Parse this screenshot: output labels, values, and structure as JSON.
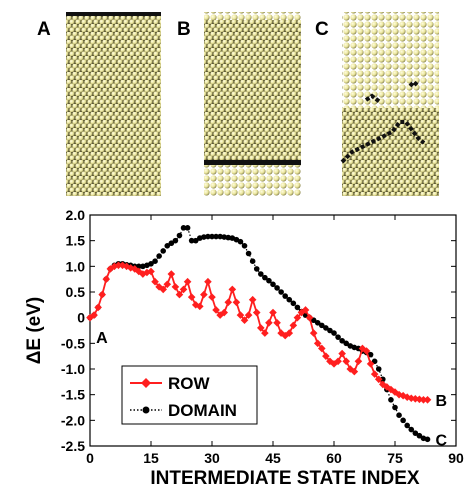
{
  "panels": [
    {
      "label": "A",
      "description": "full atomic layer"
    },
    {
      "label": "B",
      "description": "row of atoms displaced"
    },
    {
      "label": "C",
      "description": "domain displaced"
    }
  ],
  "colors": {
    "atom_fill": "#f2efa5",
    "atom_shade": "#6e6a3c",
    "atom_dark": "#0a0a0a",
    "row_series": "#ff1f1f",
    "domain_series": "#000000"
  },
  "chart_data": {
    "type": "line",
    "xlabel": "INTERMEDIATE STATE INDEX",
    "ylabel": "ΔE (eV)",
    "xlim": [
      0,
      90
    ],
    "ylim": [
      -2.5,
      2.0
    ],
    "xticks": [
      "0",
      "15",
      "30",
      "45",
      "60",
      "75",
      "90"
    ],
    "yticks": [
      "2.0",
      "1.5",
      "1.0",
      "0.5",
      "0",
      "-0.5",
      "-1.0",
      "-1.5",
      "-2.0",
      "-2.5"
    ],
    "grid": false,
    "legend_position": "bottom-left",
    "series": [
      {
        "name": "ROW",
        "marker": "diamond",
        "line_style": "solid",
        "x": [
          0,
          1,
          2,
          3,
          4,
          5,
          6,
          7,
          8,
          9,
          10,
          11,
          12,
          13,
          14,
          15,
          16,
          17,
          18,
          19,
          20,
          21,
          22,
          23,
          24,
          25,
          26,
          27,
          28,
          29,
          30,
          31,
          32,
          33,
          34,
          35,
          36,
          37,
          38,
          39,
          40,
          41,
          42,
          43,
          44,
          45,
          46,
          47,
          48,
          49,
          50,
          51,
          52,
          53,
          54,
          55,
          56,
          57,
          58,
          59,
          60,
          61,
          62,
          63,
          64,
          65,
          66,
          67,
          68,
          69,
          70,
          71,
          72,
          73,
          74,
          75,
          76,
          77,
          78,
          79,
          80,
          81,
          82,
          83
        ],
        "y": [
          0.0,
          0.05,
          0.2,
          0.45,
          0.75,
          0.95,
          1.0,
          1.02,
          1.02,
          1.0,
          0.97,
          0.95,
          0.9,
          0.85,
          0.88,
          0.9,
          0.7,
          0.6,
          0.55,
          0.65,
          0.85,
          0.6,
          0.45,
          0.55,
          0.7,
          0.4,
          0.25,
          0.22,
          0.45,
          0.7,
          0.4,
          0.15,
          0.05,
          0.1,
          0.3,
          0.55,
          0.3,
          0.05,
          -0.05,
          0.05,
          0.35,
          0.1,
          -0.2,
          -0.3,
          -0.1,
          0.1,
          -0.1,
          -0.3,
          -0.35,
          -0.3,
          -0.15,
          0.0,
          0.1,
          0.15,
          0.0,
          -0.3,
          -0.5,
          -0.6,
          -0.75,
          -0.85,
          -0.9,
          -0.85,
          -0.7,
          -0.85,
          -1.0,
          -1.05,
          -0.85,
          -0.6,
          -0.65,
          -0.9,
          -1.1,
          -1.2,
          -1.3,
          -1.35,
          -1.4,
          -1.45,
          -1.5,
          -1.52,
          -1.55,
          -1.57,
          -1.58,
          -1.59,
          -1.6,
          -1.6
        ]
      },
      {
        "name": "DOMAIN",
        "marker": "circle",
        "line_style": "dotted",
        "x": [
          0,
          1,
          2,
          3,
          4,
          5,
          6,
          7,
          8,
          9,
          10,
          11,
          12,
          13,
          14,
          15,
          16,
          17,
          18,
          19,
          20,
          21,
          22,
          23,
          24,
          25,
          26,
          27,
          28,
          29,
          30,
          31,
          32,
          33,
          34,
          35,
          36,
          37,
          38,
          39,
          40,
          41,
          42,
          43,
          44,
          45,
          46,
          47,
          48,
          49,
          50,
          51,
          52,
          53,
          54,
          55,
          56,
          57,
          58,
          59,
          60,
          61,
          62,
          63,
          64,
          65,
          66,
          67,
          68,
          69,
          70,
          71,
          72,
          73,
          74,
          75,
          76,
          77,
          78,
          79,
          80,
          81,
          82,
          83
        ],
        "y": [
          0.0,
          0.05,
          0.2,
          0.45,
          0.75,
          0.95,
          1.02,
          1.05,
          1.05,
          1.03,
          1.02,
          1.0,
          1.0,
          1.0,
          1.02,
          1.05,
          1.1,
          1.2,
          1.3,
          1.4,
          1.45,
          1.5,
          1.6,
          1.75,
          1.75,
          1.5,
          1.5,
          1.55,
          1.57,
          1.58,
          1.58,
          1.58,
          1.58,
          1.57,
          1.56,
          1.55,
          1.52,
          1.48,
          1.4,
          1.25,
          1.1,
          0.95,
          0.85,
          0.78,
          0.72,
          0.65,
          0.58,
          0.5,
          0.42,
          0.35,
          0.28,
          0.2,
          0.12,
          0.05,
          0.0,
          -0.05,
          -0.1,
          -0.15,
          -0.2,
          -0.25,
          -0.3,
          -0.38,
          -0.45,
          -0.5,
          -0.55,
          -0.58,
          -0.6,
          -0.65,
          -0.68,
          -0.72,
          -0.85,
          -1.0,
          -1.2,
          -1.4,
          -1.6,
          -1.75,
          -1.9,
          -2.0,
          -2.1,
          -2.18,
          -2.25,
          -2.3,
          -2.35,
          -2.37
        ]
      }
    ],
    "annotations": [
      {
        "text": "A",
        "x": 1,
        "y": -0.1
      },
      {
        "text": "B",
        "x": 83,
        "y": -1.6
      },
      {
        "text": "C",
        "x": 83,
        "y": -2.37
      }
    ]
  }
}
